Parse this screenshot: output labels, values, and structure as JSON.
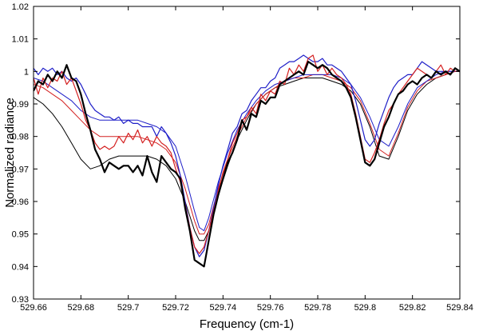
{
  "chart_data": {
    "type": "line",
    "title": "",
    "xlabel": "Frequency (cm-1)",
    "ylabel": "Normalized radiance",
    "xlim": [
      529.66,
      529.84
    ],
    "ylim": [
      0.93,
      1.02
    ],
    "grid": false,
    "x_ticks": [
      529.66,
      529.68,
      529.7,
      529.72,
      529.74,
      529.76,
      529.78,
      529.8,
      529.82,
      529.84
    ],
    "x_tick_labels": [
      "529.66",
      "529.68",
      "529.7",
      "529.72",
      "529.74",
      "529.76",
      "529.78",
      "529.8",
      "529.82",
      "529.84"
    ],
    "y_ticks": [
      0.93,
      0.94,
      0.95,
      0.96,
      0.97,
      0.98,
      0.99,
      1.0,
      1.01,
      1.02
    ],
    "y_tick_labels": [
      "0.93",
      "0.94",
      "0.95",
      "0.96",
      "0.97",
      "0.98",
      "0.99",
      "1",
      "1.01",
      "1.02"
    ],
    "series": [
      {
        "color": "#000000",
        "width": 2.2,
        "style": "noisy",
        "x": [
          529.66,
          529.662,
          529.664,
          529.666,
          529.668,
          529.67,
          529.672,
          529.674,
          529.676,
          529.678,
          529.68,
          529.682,
          529.684,
          529.686,
          529.688,
          529.69,
          529.692,
          529.694,
          529.696,
          529.698,
          529.7,
          529.702,
          529.704,
          529.706,
          529.708,
          529.71,
          529.712,
          529.714,
          529.716,
          529.718,
          529.72,
          529.722,
          529.724,
          529.726,
          529.728,
          529.73,
          529.732,
          529.734,
          529.736,
          529.738,
          529.74,
          529.742,
          529.744,
          529.746,
          529.748,
          529.75,
          529.752,
          529.754,
          529.756,
          529.758,
          529.76,
          529.762,
          529.764,
          529.766,
          529.768,
          529.77,
          529.772,
          529.774,
          529.776,
          529.778,
          529.78,
          529.782,
          529.784,
          529.786,
          529.788,
          529.79,
          529.792,
          529.794,
          529.796,
          529.798,
          529.8,
          529.802,
          529.804,
          529.806,
          529.808,
          529.81,
          529.812,
          529.814,
          529.816,
          529.818,
          529.82,
          529.822,
          529.824,
          529.826,
          529.828,
          529.83,
          529.832,
          529.834,
          529.836,
          529.838,
          529.84
        ],
        "y": [
          0.994,
          0.997,
          0.996,
          0.999,
          0.997,
          1.0,
          0.998,
          1.002,
          0.998,
          0.997,
          0.993,
          0.987,
          0.982,
          0.976,
          0.973,
          0.969,
          0.972,
          0.971,
          0.97,
          0.971,
          0.971,
          0.969,
          0.971,
          0.968,
          0.974,
          0.969,
          0.966,
          0.974,
          0.972,
          0.97,
          0.969,
          0.967,
          0.958,
          0.951,
          0.942,
          0.941,
          0.94,
          0.948,
          0.956,
          0.962,
          0.967,
          0.972,
          0.975,
          0.979,
          0.985,
          0.982,
          0.987,
          0.986,
          0.991,
          0.99,
          0.992,
          0.992,
          0.996,
          0.997,
          0.998,
          0.999,
          1.0,
          0.999,
          1.003,
          1.002,
          1.001,
          1.002,
          1.001,
          0.999,
          0.998,
          0.997,
          0.995,
          0.992,
          0.986,
          0.979,
          0.972,
          0.971,
          0.973,
          0.978,
          0.983,
          0.986,
          0.99,
          0.993,
          0.994,
          0.996,
          0.997,
          0.996,
          0.998,
          0.999,
          0.998,
          1.0,
          0.999,
          1.0,
          0.999,
          1.001,
          1.0
        ]
      },
      {
        "color": "#d42020",
        "width": 1.2,
        "style": "noisy",
        "x": [
          529.66,
          529.662,
          529.664,
          529.666,
          529.668,
          529.67,
          529.672,
          529.674,
          529.676,
          529.678,
          529.68,
          529.682,
          529.684,
          529.686,
          529.688,
          529.69,
          529.692,
          529.694,
          529.696,
          529.698,
          529.7,
          529.702,
          529.704,
          529.706,
          529.708,
          529.71,
          529.712,
          529.714,
          529.716,
          529.718,
          529.72,
          529.722,
          529.724,
          529.726,
          529.728,
          529.73,
          529.732,
          529.734,
          529.736,
          529.738,
          529.74,
          529.742,
          529.744,
          529.746,
          529.748,
          529.75,
          529.752,
          529.754,
          529.756,
          529.758,
          529.76,
          529.762,
          529.764,
          529.766,
          529.768,
          529.77,
          529.772,
          529.774,
          529.776,
          529.778,
          529.78,
          529.782,
          529.784,
          529.786,
          529.788,
          529.79,
          529.792,
          529.794,
          529.796,
          529.798,
          529.8,
          529.802,
          529.804,
          529.806,
          529.808,
          529.81,
          529.812,
          529.814,
          529.816,
          529.818,
          529.82,
          529.822,
          529.824,
          529.826,
          529.828,
          529.83,
          529.832,
          529.834,
          529.836,
          529.838,
          529.84
        ],
        "y": [
          0.998,
          0.993,
          0.998,
          0.995,
          0.998,
          0.997,
          1.0,
          0.996,
          0.998,
          0.994,
          0.99,
          0.985,
          0.982,
          0.978,
          0.976,
          0.977,
          0.976,
          0.977,
          0.98,
          0.978,
          0.981,
          0.979,
          0.982,
          0.978,
          0.98,
          0.977,
          0.98,
          0.978,
          0.977,
          0.975,
          0.97,
          0.966,
          0.959,
          0.952,
          0.946,
          0.944,
          0.946,
          0.951,
          0.957,
          0.963,
          0.969,
          0.973,
          0.978,
          0.981,
          0.985,
          0.986,
          0.989,
          0.987,
          0.993,
          0.991,
          0.994,
          0.993,
          0.997,
          0.996,
          1.001,
          0.999,
          1.002,
          1.0,
          1.004,
          1.005,
          1.0,
          1.002,
          0.999,
          1.001,
          0.999,
          0.998,
          0.996,
          0.993,
          0.987,
          0.98,
          0.973,
          0.972,
          0.975,
          0.979,
          0.984,
          0.988,
          0.99,
          0.993,
          0.995,
          0.997,
          0.999,
          1.001,
          1.0,
          0.999,
          0.998,
          1.0,
          1.002,
          0.999,
          1.001,
          1.0,
          1.0
        ]
      },
      {
        "color": "#1e1ec8",
        "width": 1.2,
        "style": "noisy",
        "x": [
          529.66,
          529.662,
          529.664,
          529.666,
          529.668,
          529.67,
          529.672,
          529.674,
          529.676,
          529.678,
          529.68,
          529.682,
          529.684,
          529.686,
          529.688,
          529.69,
          529.692,
          529.694,
          529.696,
          529.698,
          529.7,
          529.702,
          529.704,
          529.706,
          529.708,
          529.71,
          529.712,
          529.714,
          529.716,
          529.718,
          529.72,
          529.722,
          529.724,
          529.726,
          529.728,
          529.73,
          529.732,
          529.734,
          529.736,
          529.738,
          529.74,
          529.742,
          529.744,
          529.746,
          529.748,
          529.75,
          529.752,
          529.754,
          529.756,
          529.758,
          529.76,
          529.762,
          529.764,
          529.766,
          529.768,
          529.77,
          529.772,
          529.774,
          529.776,
          529.778,
          529.78,
          529.782,
          529.784,
          529.786,
          529.788,
          529.79,
          529.792,
          529.794,
          529.796,
          529.798,
          529.8,
          529.802,
          529.804,
          529.806,
          529.808,
          529.81,
          529.812,
          529.814,
          529.816,
          529.818,
          529.82,
          529.822,
          529.824,
          529.826,
          529.828,
          529.83,
          529.832,
          529.834,
          529.836,
          529.838,
          529.84
        ],
        "y": [
          1.001,
          0.999,
          1.001,
          1.0,
          1.001,
          0.999,
          1.0,
          0.998,
          0.997,
          0.998,
          0.996,
          0.993,
          0.99,
          0.988,
          0.987,
          0.986,
          0.986,
          0.985,
          0.986,
          0.984,
          0.985,
          0.984,
          0.984,
          0.983,
          0.983,
          0.983,
          0.98,
          0.983,
          0.981,
          0.978,
          0.974,
          0.968,
          0.96,
          0.952,
          0.946,
          0.943,
          0.945,
          0.951,
          0.958,
          0.965,
          0.971,
          0.976,
          0.981,
          0.983,
          0.987,
          0.988,
          0.991,
          0.993,
          0.995,
          0.995,
          0.997,
          0.998,
          1.001,
          1.002,
          1.003,
          1.003,
          1.004,
          1.005,
          1.004,
          1.003,
          1.003,
          1.004,
          1.002,
          1.002,
          1.001,
          1.0,
          0.998,
          0.996,
          0.991,
          0.985,
          0.979,
          0.977,
          0.979,
          0.984,
          0.988,
          0.992,
          0.995,
          0.997,
          0.998,
          0.999,
          0.999,
          1.001,
          1.003,
          1.002,
          1.001,
          1.0,
          1.0,
          1.0,
          1.0,
          1.0,
          1.0
        ]
      },
      {
        "color": "#000000",
        "width": 1.0,
        "style": "smooth",
        "x": [
          529.66,
          529.664,
          529.668,
          529.672,
          529.676,
          529.68,
          529.684,
          529.688,
          529.692,
          529.696,
          529.7,
          529.704,
          529.708,
          529.712,
          529.716,
          529.72,
          529.724,
          529.728,
          529.73,
          529.732,
          529.734,
          529.738,
          529.742,
          529.746,
          529.75,
          529.754,
          529.758,
          529.762,
          529.766,
          529.77,
          529.774,
          529.778,
          529.782,
          529.786,
          529.79,
          529.794,
          529.798,
          529.802,
          529.806,
          529.81,
          529.814,
          529.818,
          529.822,
          529.826,
          529.83,
          529.834,
          529.838,
          529.84
        ],
        "y": [
          0.992,
          0.99,
          0.987,
          0.983,
          0.978,
          0.973,
          0.97,
          0.971,
          0.973,
          0.974,
          0.974,
          0.974,
          0.974,
          0.973,
          0.971,
          0.967,
          0.96,
          0.951,
          0.948,
          0.948,
          0.951,
          0.962,
          0.971,
          0.979,
          0.985,
          0.99,
          0.993,
          0.995,
          0.996,
          0.997,
          0.998,
          0.998,
          0.998,
          0.997,
          0.996,
          0.994,
          0.99,
          0.983,
          0.974,
          0.973,
          0.98,
          0.988,
          0.993,
          0.996,
          0.998,
          0.999,
          1.0,
          1.0
        ]
      },
      {
        "color": "#d42020",
        "width": 1.0,
        "style": "smooth",
        "x": [
          529.66,
          529.664,
          529.668,
          529.672,
          529.676,
          529.68,
          529.684,
          529.688,
          529.692,
          529.696,
          529.7,
          529.704,
          529.708,
          529.712,
          529.716,
          529.72,
          529.724,
          529.728,
          529.73,
          529.732,
          529.734,
          529.738,
          529.742,
          529.746,
          529.75,
          529.754,
          529.758,
          529.762,
          529.766,
          529.77,
          529.774,
          529.778,
          529.782,
          529.786,
          529.79,
          529.794,
          529.798,
          529.802,
          529.806,
          529.81,
          529.814,
          529.818,
          529.822,
          529.826,
          529.83,
          529.834,
          529.838,
          529.84
        ],
        "y": [
          0.996,
          0.995,
          0.993,
          0.991,
          0.988,
          0.985,
          0.982,
          0.98,
          0.98,
          0.98,
          0.98,
          0.98,
          0.979,
          0.978,
          0.976,
          0.972,
          0.964,
          0.954,
          0.95,
          0.95,
          0.953,
          0.964,
          0.973,
          0.98,
          0.986,
          0.99,
          0.993,
          0.995,
          0.997,
          0.998,
          0.998,
          0.999,
          0.999,
          0.998,
          0.997,
          0.995,
          0.991,
          0.984,
          0.976,
          0.974,
          0.981,
          0.989,
          0.994,
          0.997,
          0.998,
          0.999,
          1.0,
          1.0
        ]
      },
      {
        "color": "#1e1ec8",
        "width": 1.0,
        "style": "smooth",
        "x": [
          529.66,
          529.664,
          529.668,
          529.672,
          529.676,
          529.68,
          529.684,
          529.688,
          529.692,
          529.696,
          529.7,
          529.704,
          529.708,
          529.712,
          529.716,
          529.72,
          529.724,
          529.728,
          529.73,
          529.732,
          529.734,
          529.738,
          529.742,
          529.746,
          529.75,
          529.754,
          529.758,
          529.762,
          529.766,
          529.77,
          529.774,
          529.778,
          529.782,
          529.786,
          529.79,
          529.794,
          529.798,
          529.802,
          529.806,
          529.81,
          529.814,
          529.818,
          529.822,
          529.826,
          529.83,
          529.834,
          529.838,
          529.84
        ],
        "y": [
          0.998,
          0.997,
          0.995,
          0.993,
          0.991,
          0.988,
          0.986,
          0.985,
          0.985,
          0.985,
          0.985,
          0.985,
          0.984,
          0.983,
          0.981,
          0.977,
          0.968,
          0.957,
          0.952,
          0.951,
          0.955,
          0.966,
          0.975,
          0.982,
          0.987,
          0.991,
          0.994,
          0.996,
          0.997,
          0.998,
          0.999,
          0.999,
          0.999,
          0.999,
          0.998,
          0.996,
          0.992,
          0.986,
          0.979,
          0.977,
          0.983,
          0.99,
          0.995,
          0.997,
          0.999,
          1.0,
          1.0,
          1.0
        ]
      }
    ]
  }
}
